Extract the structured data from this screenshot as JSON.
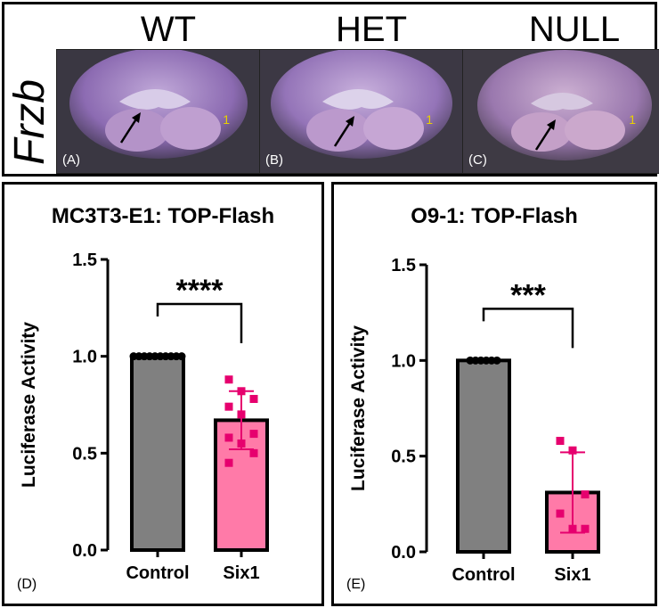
{
  "images": {
    "gene_label": "Frzb",
    "panels": [
      {
        "genotype": "WT",
        "label": "(A)",
        "marker": "1"
      },
      {
        "genotype": "HET",
        "label": "(B)",
        "marker": "1"
      },
      {
        "genotype": "NULL",
        "label": "(C)",
        "marker": "1"
      }
    ]
  },
  "colors": {
    "control": "#808080",
    "six1": "#ff7aa8",
    "six1_points": "#e6006e"
  },
  "chart_data": [
    {
      "type": "bar",
      "panel_label": "(D)",
      "title": "MC3T3-E1: TOP-Flash",
      "ylabel": "Luciferase Activity",
      "xlabel": "",
      "categories": [
        "Control",
        "Six1"
      ],
      "values": [
        1.0,
        0.67
      ],
      "error": [
        0,
        0.15
      ],
      "ylim": [
        0,
        1.5
      ],
      "yticks": [
        "0.0",
        "0.5",
        "1.0",
        "1.5"
      ],
      "significance": "****",
      "points": [
        [
          1.0,
          1.0,
          1.0,
          1.0,
          1.0,
          1.0,
          1.0,
          1.0,
          1.0,
          1.0
        ],
        [
          0.88,
          0.82,
          0.78,
          0.74,
          0.7,
          0.6,
          0.58,
          0.55,
          0.5,
          0.45
        ]
      ]
    },
    {
      "type": "bar",
      "panel_label": "(E)",
      "title": "O9-1: TOP-Flash",
      "ylabel": "Luciferase Activity",
      "xlabel": "",
      "categories": [
        "Control",
        "Six1"
      ],
      "values": [
        1.0,
        0.31
      ],
      "error": [
        0,
        0.21
      ],
      "ylim": [
        0,
        1.5
      ],
      "yticks": [
        "0.0",
        "0.5",
        "1.0",
        "1.5"
      ],
      "significance": "***",
      "points": [
        [
          1.0,
          1.0,
          1.0,
          1.0,
          1.0,
          1.0
        ],
        [
          0.58,
          0.53,
          0.3,
          0.2,
          0.12,
          0.12
        ]
      ]
    }
  ]
}
